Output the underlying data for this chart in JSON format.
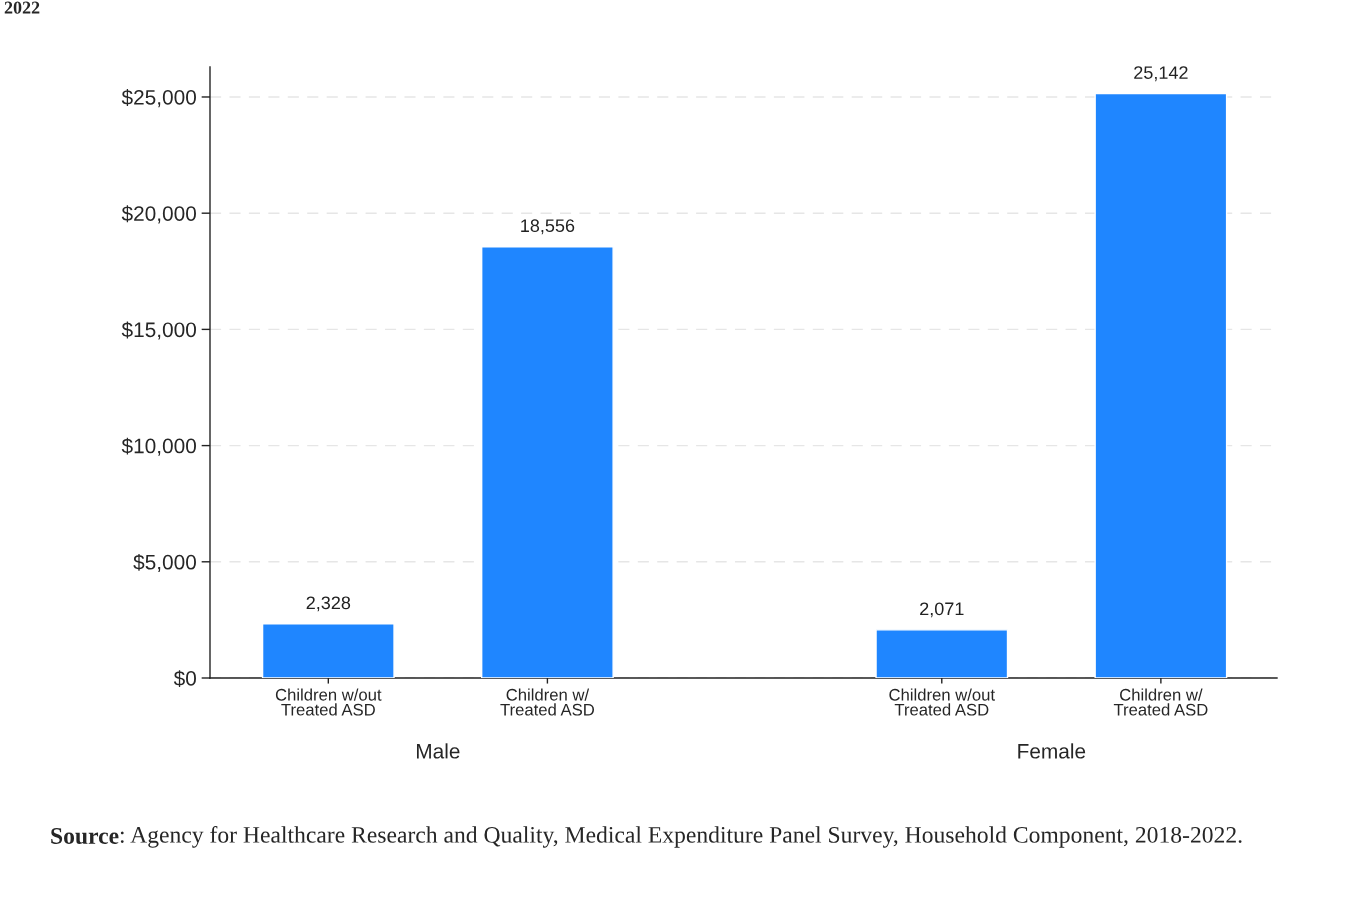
{
  "chart_data": {
    "type": "bar",
    "title": "2022",
    "categories": [
      "Children w/out\nTreated ASD",
      "Children w/\nTreated ASD",
      "Children w/out\nTreated ASD",
      "Children w/\nTreated ASD"
    ],
    "values": [
      2328,
      18556,
      2071,
      25142
    ],
    "color": "#1f86ff",
    "value_labels": [
      "2,328",
      "18,556",
      "2,071",
      "25,142"
    ],
    "ylim": [
      0,
      26290
    ],
    "yticks": [
      {
        "value": 0,
        "label": "$0"
      },
      {
        "value": 5000,
        "label": "$5,000"
      },
      {
        "value": 10000,
        "label": "$10,000"
      },
      {
        "value": 15000,
        "label": "$15,000"
      },
      {
        "value": 20000,
        "label": "$20,000"
      },
      {
        "value": 25000,
        "label": "$25,000"
      }
    ],
    "grid": "y",
    "annotations": [
      "Male",
      "Female",
      "Source: Agency for Healthcare Research and Quality, Medical Expenditure Panel Survey, Household Component, 2018-2022."
    ]
  }
}
